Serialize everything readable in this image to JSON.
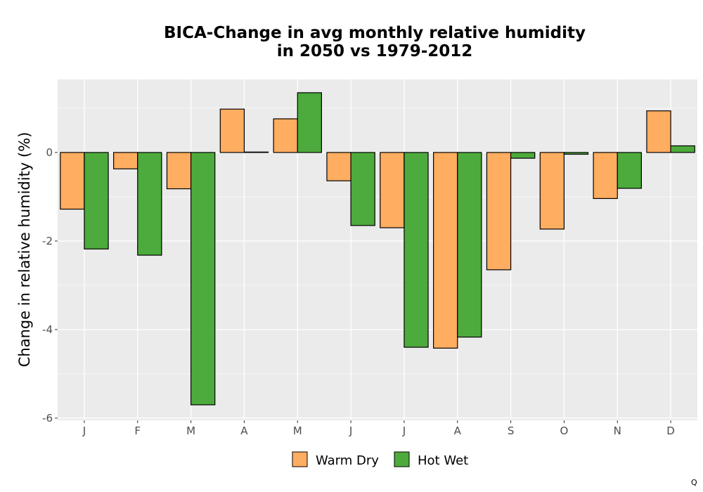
{
  "chart_data": {
    "type": "bar",
    "title_lines": [
      "BICA-Change in avg monthly relative humidity",
      "in 2050 vs 1979-2012"
    ],
    "xlabel": "",
    "ylabel": "Change in relative humidity (%)",
    "categories": [
      "J",
      "F",
      "M",
      "A",
      "M",
      "J",
      "J",
      "A",
      "S",
      "O",
      "N",
      "D"
    ],
    "series": [
      {
        "name": "Warm Dry",
        "color": "#FFAD60",
        "values": [
          -1.28,
          -0.37,
          -0.82,
          0.98,
          0.76,
          -0.64,
          -1.7,
          -4.42,
          -2.65,
          -1.73,
          -1.04,
          0.94
        ]
      },
      {
        "name": "Hot Wet",
        "color": "#4DAA3C",
        "values": [
          -2.18,
          -2.32,
          -5.7,
          0.01,
          1.35,
          -1.65,
          -4.4,
          -4.17,
          -0.13,
          -0.04,
          -0.81,
          0.15
        ]
      }
    ],
    "ylim": [
      -6.05,
      1.65
    ],
    "yticks": [
      -6,
      -4,
      -2,
      0
    ],
    "ytick_labels": [
      "-6",
      "-4",
      "-2",
      "0"
    ],
    "grid": true,
    "legend_position": "bottom"
  },
  "corner_mark": "Q"
}
